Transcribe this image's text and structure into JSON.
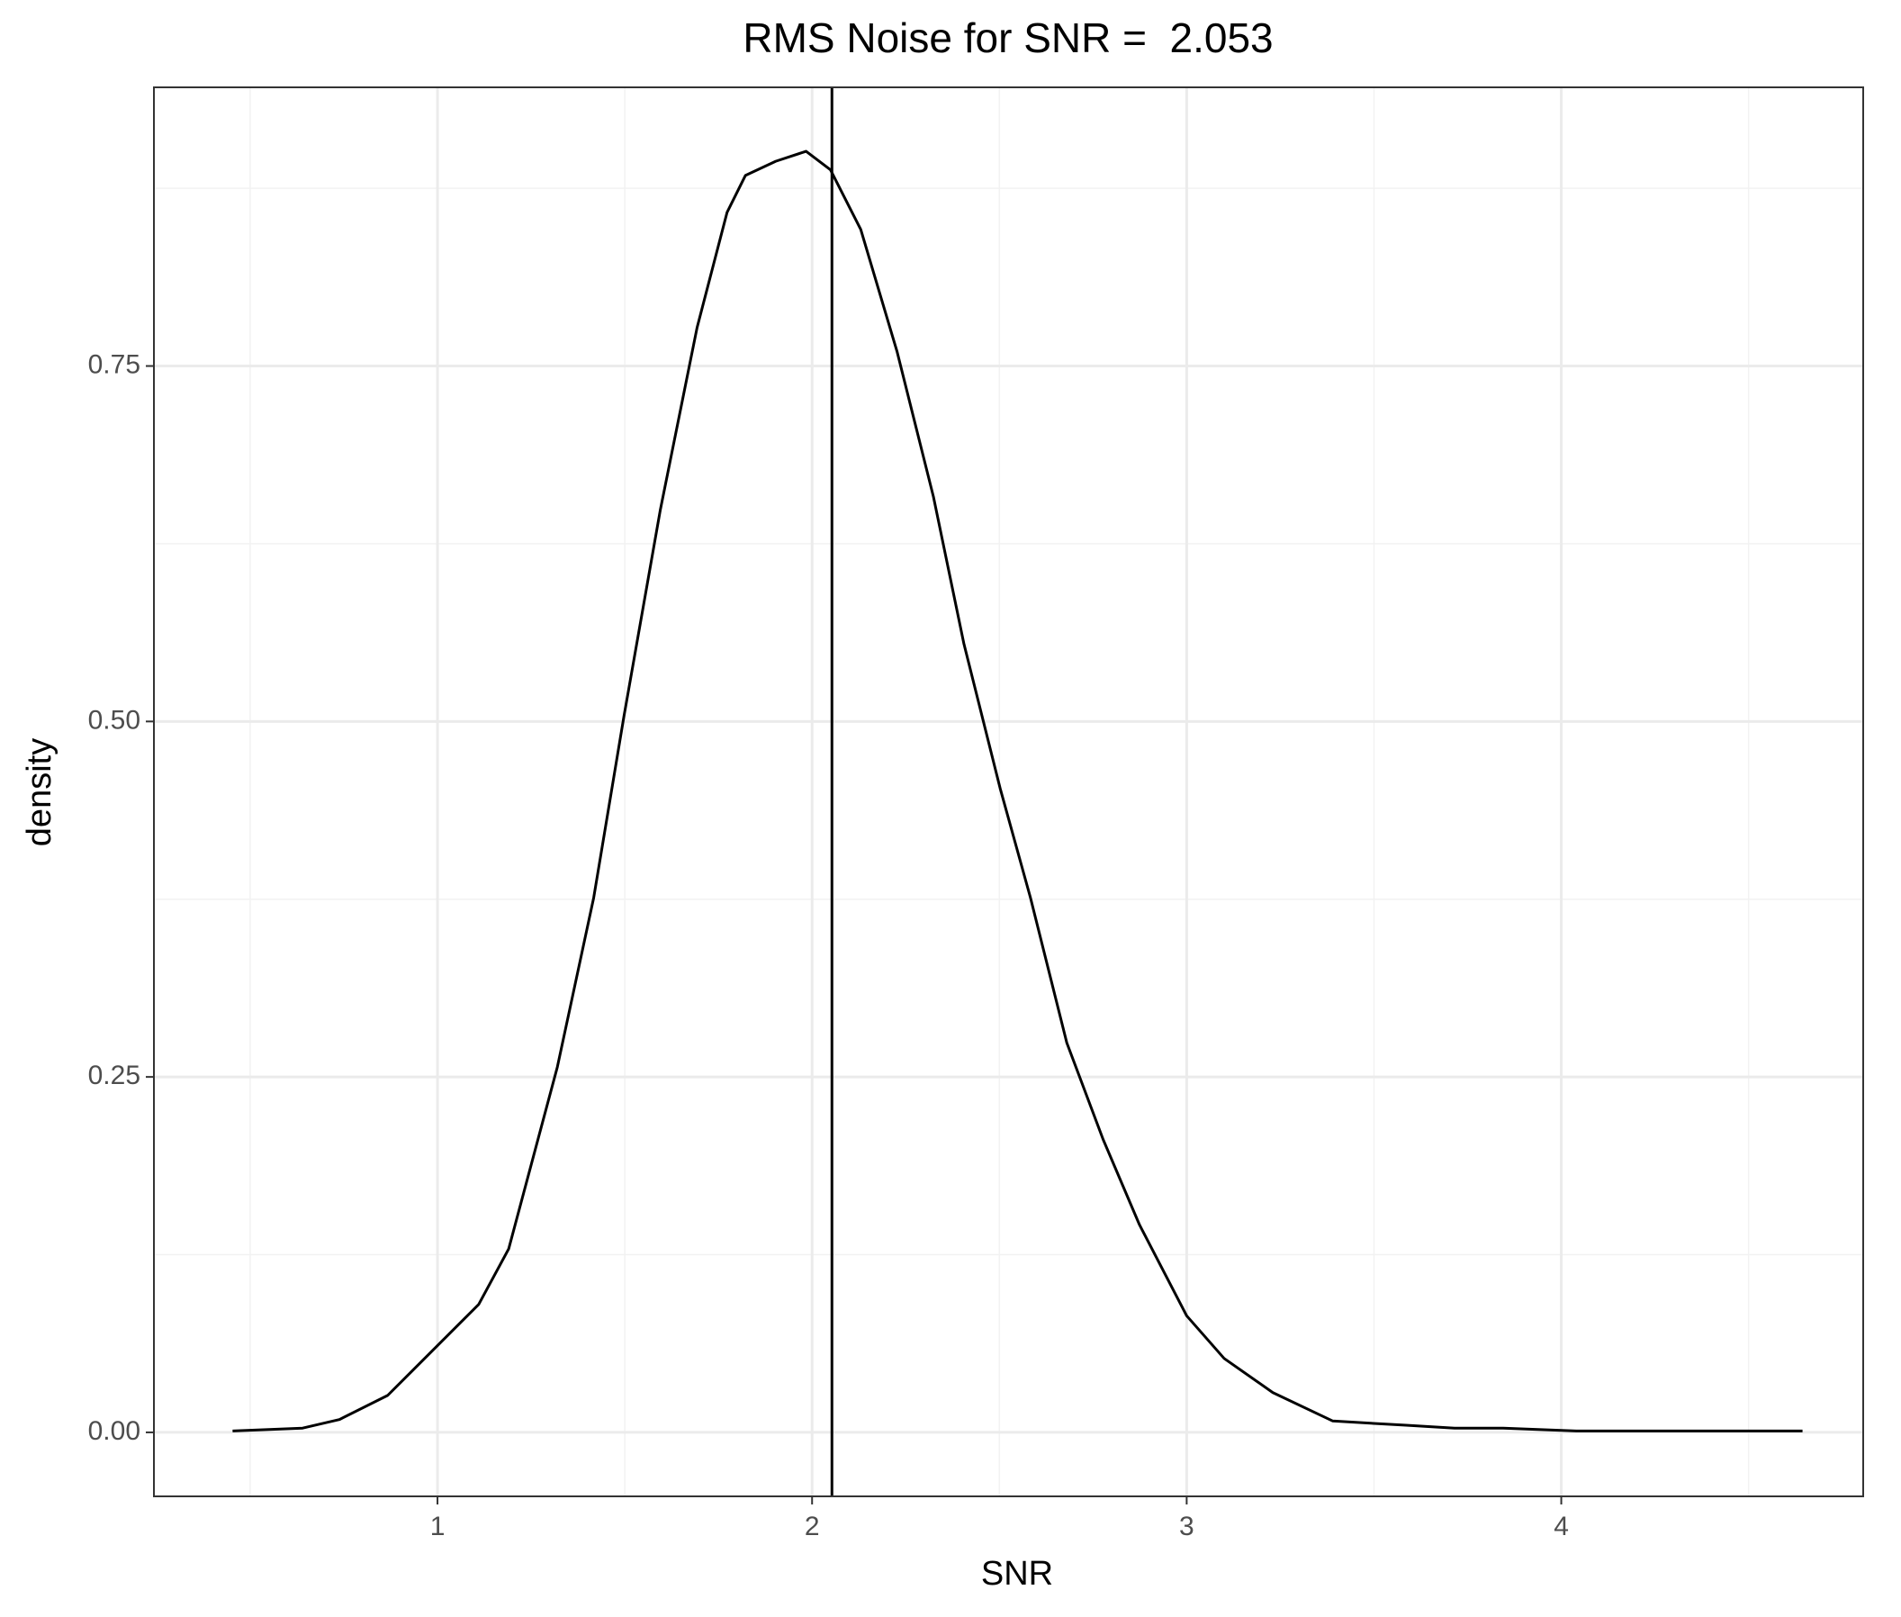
{
  "chart_data": {
    "type": "line",
    "title": "RMS Noise for SNR =  2.053",
    "xlabel": "SNR",
    "ylabel": "density",
    "x": [
      0.453,
      0.64,
      0.738,
      0.867,
      1.0,
      1.11,
      1.19,
      1.32,
      1.417,
      1.498,
      1.595,
      1.693,
      1.773,
      1.822,
      1.903,
      1.984,
      2.049,
      2.13,
      2.227,
      2.324,
      2.405,
      2.502,
      2.583,
      2.68,
      2.777,
      2.874,
      3.0,
      3.1,
      3.23,
      3.39,
      3.586,
      3.715,
      3.845,
      4.04,
      4.36,
      4.644
    ],
    "series": [
      {
        "color": "#000000",
        "values": [
          0.001,
          0.003,
          0.009,
          0.026,
          0.061,
          0.09,
          0.129,
          0.257,
          0.376,
          0.504,
          0.649,
          0.777,
          0.858,
          0.884,
          0.894,
          0.901,
          0.888,
          0.846,
          0.76,
          0.658,
          0.555,
          0.453,
          0.376,
          0.274,
          0.206,
          0.146,
          0.082,
          0.052,
          0.028,
          0.008,
          0.005,
          0.003,
          0.003,
          0.001,
          0.001,
          0.001
        ]
      }
    ],
    "vline": 2.053,
    "xlim": [
      0.243,
      4.806
    ],
    "ylim": [
      -0.045,
      0.946
    ],
    "xticks": [
      1,
      2,
      3,
      4
    ],
    "yticks": [
      {
        "value": 0,
        "label": "0.00"
      },
      {
        "value": 0.25,
        "label": "0.25"
      },
      {
        "value": 0.5,
        "label": "0.50"
      },
      {
        "value": 0.75,
        "label": "0.75"
      }
    ],
    "x_minor_breaks": [
      0.5,
      1.5,
      2.5,
      3.5,
      4.5
    ],
    "y_minor_breaks": [
      0.125,
      0.375,
      0.625,
      0.875
    ],
    "grid": true
  }
}
